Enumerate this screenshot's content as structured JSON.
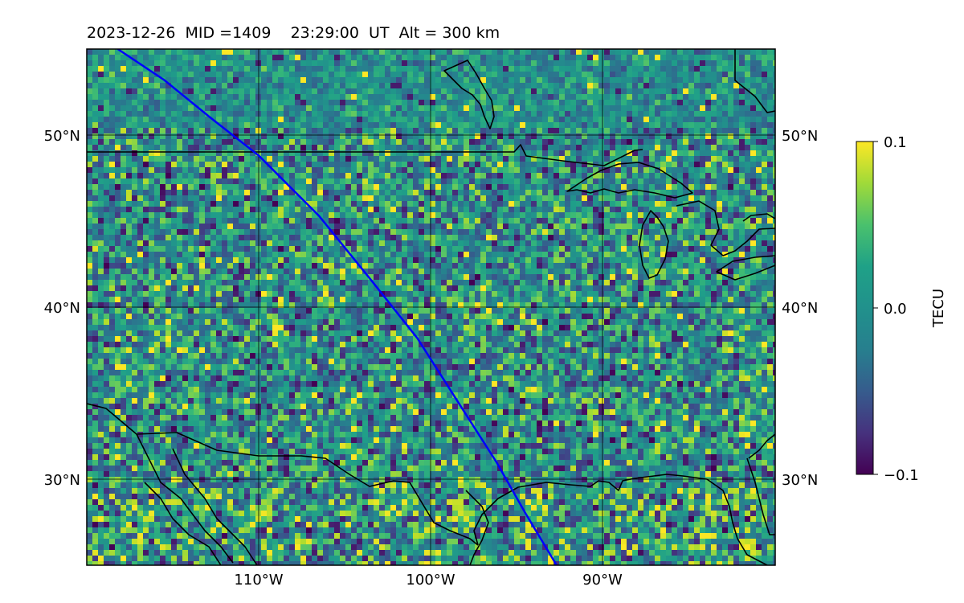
{
  "title": "2023-12-26  MID =1409    23:29:00  UT  Alt = 300 km",
  "map": {
    "projection": "PlateCarree",
    "lon_range": [
      -120,
      -80
    ],
    "lat_range": [
      25,
      55
    ],
    "grid": true,
    "lat_ticks": [
      {
        "value": 30,
        "label": "30°N"
      },
      {
        "value": 40,
        "label": "40°N"
      },
      {
        "value": 50,
        "label": "50°N"
      }
    ],
    "lon_ticks": [
      {
        "value": -110,
        "label": "110°W"
      },
      {
        "value": -100,
        "label": "100°W"
      },
      {
        "value": -90,
        "label": "90°W"
      }
    ],
    "field": {
      "quantity": "differential TEC",
      "units": "TECU",
      "colormap": "viridis",
      "vmin": -0.1,
      "vmax": 0.1,
      "distribution": "noisy pixelated field, mostly near 0 TECU, scattered patches of -0.1 and +0.1; strong positive patches along the southern edge"
    },
    "track": {
      "color": "#0000ff",
      "points": [
        [
          -118.2,
          55
        ],
        [
          -115.5,
          53.2
        ],
        [
          -112.8,
          51
        ],
        [
          -110,
          48.8
        ],
        [
          -106.5,
          45.3
        ],
        [
          -103.5,
          41.6
        ],
        [
          -100.8,
          38.2
        ],
        [
          -98.5,
          34.6
        ],
        [
          -96.2,
          31
        ],
        [
          -94.5,
          28
        ],
        [
          -92.7,
          25
        ]
      ]
    },
    "coastline_color": "#000000"
  },
  "colorbar": {
    "label": "TECU",
    "ticks": [
      {
        "value": 0.1,
        "label": "0.1"
      },
      {
        "value": 0.0,
        "label": "0.0"
      },
      {
        "value": -0.1,
        "label": "−0.1"
      }
    ]
  }
}
